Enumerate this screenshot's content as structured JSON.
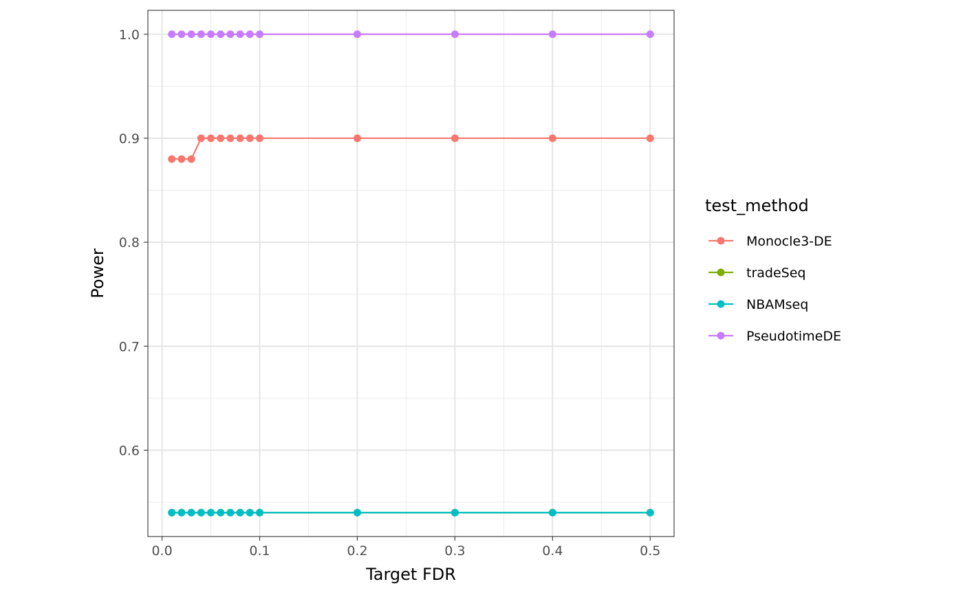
{
  "chart_data": {
    "type": "line",
    "xlabel": "Target FDR",
    "ylabel": "Power",
    "xlim": [
      -0.0145,
      0.5245
    ],
    "ylim": [
      0.517,
      1.023
    ],
    "x_ticks": [
      0.0,
      0.1,
      0.2,
      0.3,
      0.4,
      0.5
    ],
    "x_tick_labels": [
      "0.0",
      "0.1",
      "0.2",
      "0.3",
      "0.4",
      "0.5"
    ],
    "y_ticks": [
      0.6,
      0.7,
      0.8,
      0.9,
      1.0
    ],
    "y_tick_labels": [
      "0.6",
      "0.7",
      "0.8",
      "0.9",
      "1.0"
    ],
    "grid": true,
    "legend_title": "test_method",
    "legend_position": "right",
    "x": [
      0.01,
      0.02,
      0.03,
      0.04,
      0.05,
      0.06,
      0.07,
      0.08,
      0.09,
      0.1,
      0.2,
      0.3,
      0.4,
      0.5
    ],
    "series": [
      {
        "name": "Monocle3-DE",
        "color": "#F8766D",
        "values": [
          0.88,
          0.88,
          0.88,
          0.9,
          0.9,
          0.9,
          0.9,
          0.9,
          0.9,
          0.9,
          0.9,
          0.9,
          0.9,
          0.9
        ]
      },
      {
        "name": "tradeSeq",
        "color": "#7CAE00",
        "values": [
          0.54,
          0.54,
          0.54,
          0.54,
          0.54,
          0.54,
          0.54,
          0.54,
          0.54,
          0.54,
          0.54,
          0.54,
          0.54,
          0.54
        ]
      },
      {
        "name": "NBAMseq",
        "color": "#00BFC4",
        "values": [
          0.54,
          0.54,
          0.54,
          0.54,
          0.54,
          0.54,
          0.54,
          0.54,
          0.54,
          0.54,
          0.54,
          0.54,
          0.54,
          0.54
        ]
      },
      {
        "name": "PseudotimeDE",
        "color": "#C77CFF",
        "values": [
          1.0,
          1.0,
          1.0,
          1.0,
          1.0,
          1.0,
          1.0,
          1.0,
          1.0,
          1.0,
          1.0,
          1.0,
          1.0,
          1.0
        ]
      }
    ]
  }
}
